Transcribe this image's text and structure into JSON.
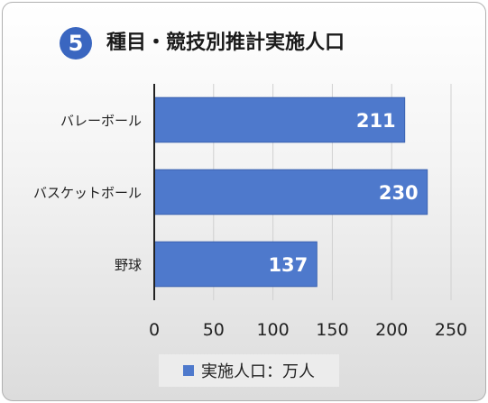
{
  "title": {
    "number": "5",
    "text": "種目・競技別推計実施人口"
  },
  "chart_data": {
    "type": "bar",
    "orientation": "horizontal",
    "categories": [
      "バレーボール",
      "バスケットボール",
      "野球"
    ],
    "series": [
      {
        "name": "実施人口：万人",
        "values": [
          211,
          230,
          137
        ]
      }
    ],
    "xlim": [
      0,
      250
    ],
    "xticks": [
      0,
      50,
      100,
      150,
      200,
      250
    ],
    "grid": true,
    "legend": "bottom",
    "colors": {
      "bar": "#4e79cc",
      "bar_edge": "#3a62b0",
      "label": "#ffffff",
      "grid": "#d0d0d0",
      "axis": "#222222"
    }
  }
}
